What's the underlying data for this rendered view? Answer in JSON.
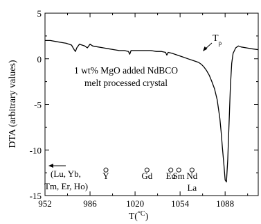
{
  "chart_data": {
    "type": "line",
    "xlabel": "T(",
    "xlabel_unit": "°C",
    "xlabel_close": ")",
    "ylabel": "DTA (arbitrary values)",
    "xlim": [
      952,
      1113
    ],
    "ylim": [
      -15,
      5
    ],
    "x_ticks": [
      "952",
      "986",
      "1020",
      "1054",
      "1088"
    ],
    "y_ticks": [
      "5",
      "0",
      "-5",
      "-10",
      "-15"
    ],
    "annotation_lines": [
      "1 wt% MgO added NdBCO",
      "melt processed crystal"
    ],
    "tp_label": "T",
    "tp_subscript": "p",
    "arrow_label_lines": [
      "(Lu, Yb,",
      "Tm, Er, Ho)"
    ],
    "markers": [
      {
        "label": "Y",
        "x": 998,
        "y": -12.2
      },
      {
        "label": "Gd",
        "x": 1029,
        "y": -12.2
      },
      {
        "label": "Eu",
        "x": 1047,
        "y": -12.2
      },
      {
        "label": "Sm",
        "x": 1053,
        "y": -12.2
      },
      {
        "label": "Nd",
        "x": 1063,
        "y": -12.2
      },
      {
        "label": "La",
        "x": 1063,
        "y": -12.2
      }
    ],
    "series": [
      {
        "x": [
          952,
          956,
          960,
          964,
          968,
          972,
          974,
          975,
          976,
          978,
          982,
          984,
          986,
          988,
          992,
          996,
          1000,
          1004,
          1008,
          1012,
          1015,
          1016,
          1017,
          1020,
          1024,
          1028,
          1032,
          1036,
          1040,
          1043,
          1044,
          1045,
          1048,
          1052,
          1056,
          1060,
          1064,
          1068,
          1070,
          1072,
          1074,
          1076,
          1078,
          1080,
          1082,
          1084,
          1085,
          1086,
          1087,
          1088,
          1089,
          1090,
          1091,
          1092,
          1093,
          1094,
          1096,
          1098,
          1100,
          1104,
          1108,
          1113
        ],
        "y": [
          2.0,
          2.0,
          1.9,
          1.8,
          1.7,
          1.5,
          1.0,
          0.8,
          1.2,
          1.6,
          1.4,
          1.2,
          1.6,
          1.4,
          1.3,
          1.2,
          1.1,
          1.0,
          0.9,
          0.9,
          0.8,
          0.5,
          0.9,
          0.9,
          0.9,
          0.9,
          0.9,
          0.8,
          0.8,
          0.7,
          0.4,
          0.7,
          0.6,
          0.4,
          0.2,
          0.0,
          -0.2,
          -0.4,
          -0.6,
          -0.9,
          -1.3,
          -1.8,
          -2.5,
          -3.3,
          -4.5,
          -6.5,
          -8.0,
          -9.8,
          -11.5,
          -13.3,
          -13.5,
          -11.0,
          -7.0,
          -3.0,
          -0.5,
          0.6,
          1.2,
          1.4,
          1.3,
          1.2,
          1.1,
          1.0
        ]
      }
    ]
  }
}
